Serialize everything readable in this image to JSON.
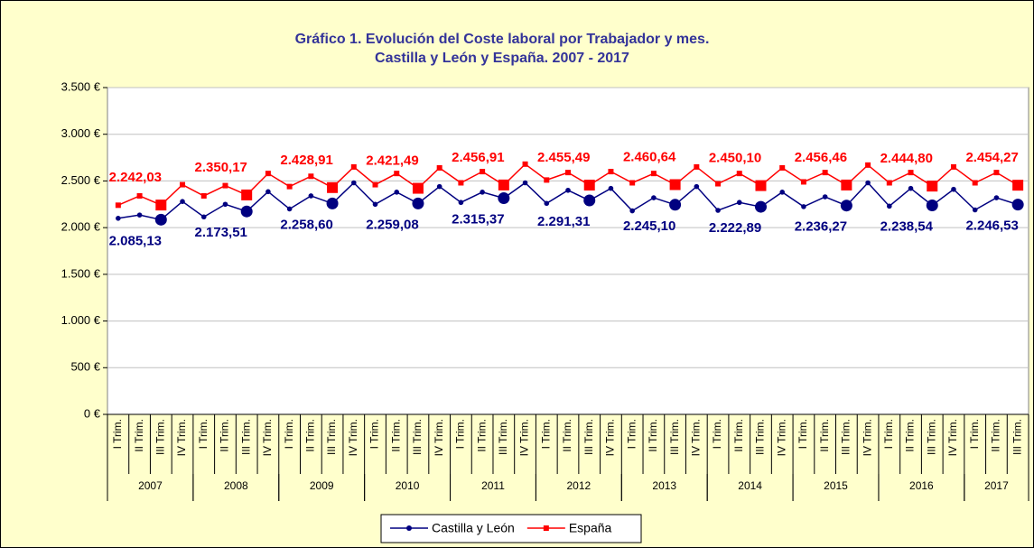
{
  "chart_data": {
    "type": "line",
    "title": [
      "Gráfico 1. Evolución del Coste laboral por Trabajador y mes.",
      "Castilla y León y España. 2007 - 2017"
    ],
    "categories": [
      "I Trim.",
      "II Trim.",
      "III Trim.",
      "IV Trim.",
      "I Trim.",
      "II Trim.",
      "III Trim.",
      "IV Trim.",
      "I Trim.",
      "II Trim.",
      "III Trim.",
      "IV Trim.",
      "I Trim.",
      "II Trim.",
      "III Trim.",
      "IV Trim.",
      "I Trim.",
      "II Trim.",
      "III Trim.",
      "IV Trim.",
      "I Trim.",
      "II Trim.",
      "III Trim.",
      "IV Trim.",
      "I Trim.",
      "II Trim.",
      "III Trim.",
      "IV Trim.",
      "I Trim.",
      "II Trim.",
      "III Trim.",
      "IV Trim.",
      "I Trim.",
      "II Trim.",
      "III Trim.",
      "IV Trim.",
      "I Trim.",
      "II Trim.",
      "III Trim.",
      "IV Trim.",
      "I Trim.",
      "II Trim.",
      "III Trim."
    ],
    "years": [
      "2007",
      "2008",
      "2009",
      "2010",
      "2011",
      "2012",
      "2013",
      "2014",
      "2015",
      "2016",
      "2017"
    ],
    "ylim": [
      0,
      3500
    ],
    "yticks": [
      {
        "value": 0,
        "label": "0 €"
      },
      {
        "value": 500,
        "label": "500 €"
      },
      {
        "value": 1000,
        "label": "1.000 €"
      },
      {
        "value": 1500,
        "label": "1.500 €"
      },
      {
        "value": 2000,
        "label": "2.000 €"
      },
      {
        "value": 2500,
        "label": "2.500 €"
      },
      {
        "value": 3000,
        "label": "3.000 €"
      },
      {
        "value": 3500,
        "label": "3.500 €"
      }
    ],
    "grid": true,
    "legend": "bottom",
    "series": [
      {
        "name": "Castilla y León",
        "color": "#000080",
        "values": [
          2100,
          2135,
          2085.13,
          2280,
          2115,
          2250,
          2173.51,
          2385,
          2200,
          2340,
          2258.6,
          2480,
          2250,
          2380,
          2259.08,
          2440,
          2270,
          2380,
          2315.37,
          2480,
          2260,
          2400,
          2291.31,
          2420,
          2180,
          2320,
          2245.1,
          2440,
          2185,
          2270,
          2222.89,
          2380,
          2225,
          2330,
          2236.27,
          2480,
          2230,
          2420,
          2238.54,
          2410,
          2190,
          2320,
          2246.53
        ],
        "value_labels": [
          null,
          null,
          "2.085,13",
          null,
          null,
          null,
          "2.173,51",
          null,
          null,
          null,
          "2.258,60",
          null,
          null,
          null,
          "2.259,08",
          null,
          null,
          null,
          "2.315,37",
          null,
          null,
          null,
          "2.291,31",
          null,
          null,
          null,
          "2.245,10",
          null,
          null,
          null,
          "2.222,89",
          null,
          null,
          null,
          "2.236,27",
          null,
          null,
          null,
          "2.238,54",
          null,
          null,
          null,
          "2.246,53"
        ]
      },
      {
        "name": "España",
        "color": "#ff0000",
        "values": [
          2240,
          2340,
          2242.03,
          2460,
          2340,
          2450,
          2350.17,
          2580,
          2440,
          2550,
          2428.91,
          2650,
          2460,
          2580,
          2421.49,
          2640,
          2480,
          2600,
          2456.91,
          2680,
          2510,
          2590,
          2455.49,
          2600,
          2480,
          2580,
          2460.64,
          2650,
          2470,
          2580,
          2450.1,
          2640,
          2490,
          2590,
          2456.46,
          2670,
          2480,
          2590,
          2444.8,
          2650,
          2480,
          2590,
          2454.27
        ],
        "value_labels": [
          null,
          null,
          "2.242,03",
          null,
          null,
          null,
          "2.350,17",
          null,
          null,
          null,
          "2.428,91",
          null,
          null,
          null,
          "2.421,49",
          null,
          null,
          null,
          "2.456,91",
          null,
          null,
          null,
          "2.455,49",
          null,
          null,
          null,
          "2.460,64",
          null,
          null,
          null,
          "2.450,10",
          null,
          null,
          null,
          "2.456,46",
          null,
          null,
          null,
          "2.444,80",
          null,
          null,
          null,
          "2.454,27"
        ]
      }
    ]
  }
}
